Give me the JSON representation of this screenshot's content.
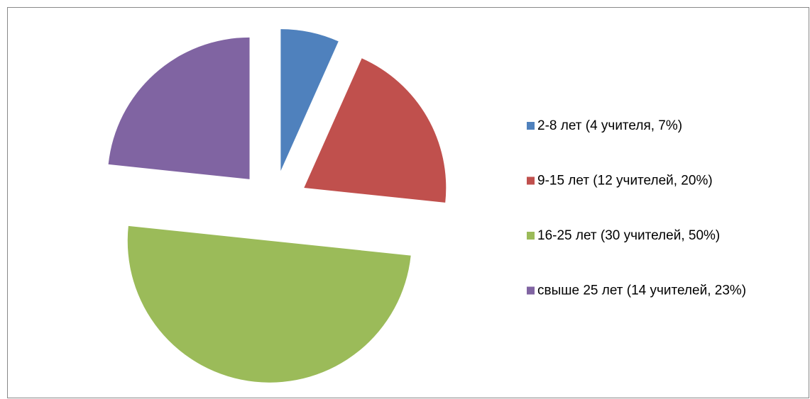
{
  "chart_data": {
    "type": "pie",
    "categories": [
      "2-8 лет (4 учителя, 7%)",
      "9-15 лет (12 учителей, 20%)",
      "16-25 лет (30 учителей, 50%)",
      "свыше 25 лет (14 учителей, 23%)"
    ],
    "values": [
      4,
      12,
      30,
      14
    ],
    "colors": [
      "#4f81bd",
      "#c0504d",
      "#9bbb59",
      "#8064a2"
    ],
    "legend": "right"
  }
}
